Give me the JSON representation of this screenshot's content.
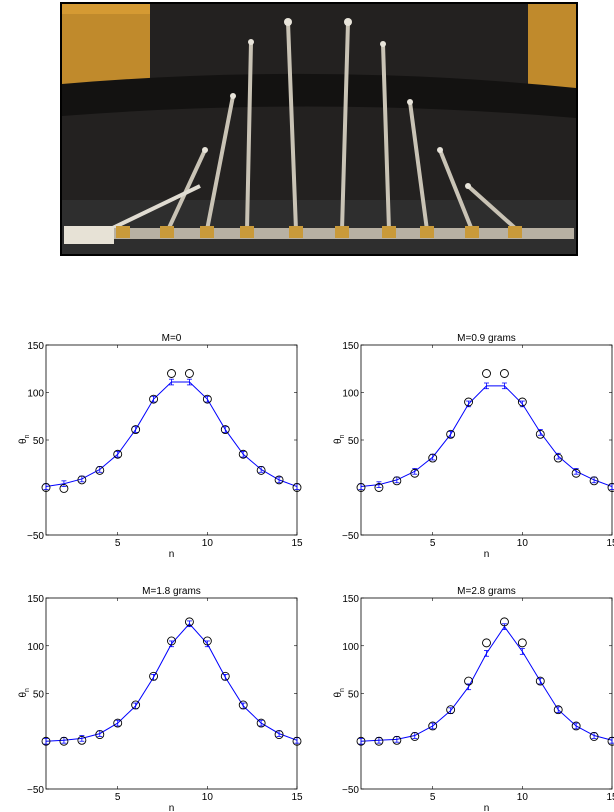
{
  "photo": {
    "icon": "pendulum-array-photo",
    "colors": {
      "backdrop": "#1e1e1e",
      "upper_band": "#2a2824",
      "floor": "#3a3a3a",
      "wood": "#c08a2c",
      "rod": "#c9c3b5",
      "base": "#b8b1a3"
    }
  },
  "colors": {
    "model_line": "#0000ff",
    "marker": "#000000",
    "axes": "#000000"
  },
  "chart_data": [
    {
      "type": "line",
      "title": "M=0",
      "xlabel": "n",
      "ylabel": "θ",
      "ylabel_subscript": "n",
      "xlim": [
        1,
        15
      ],
      "ylim": [
        -50,
        150
      ],
      "xticks": [
        5,
        10,
        15
      ],
      "yticks": [
        -50,
        50,
        100,
        150
      ],
      "series": [
        {
          "kind": "markers",
          "x": [
            1,
            2,
            3,
            4,
            5,
            6,
            7,
            8,
            9,
            10,
            11,
            12,
            13,
            14,
            15
          ],
          "y": [
            0,
            -1,
            8,
            18,
            35,
            61,
            93,
            120,
            120,
            93,
            61,
            35,
            18,
            8,
            0
          ]
        },
        {
          "kind": "line-errorbars",
          "x": [
            1,
            2,
            3,
            4,
            5,
            6,
            7,
            8,
            9,
            10,
            11,
            12,
            13,
            14,
            15
          ],
          "y": [
            1,
            4,
            9,
            19,
            35,
            61,
            93,
            111,
            111,
            93,
            61,
            35,
            19,
            8,
            1
          ],
          "err": 3
        }
      ]
    },
    {
      "type": "line",
      "title": "M=0.9 grams",
      "xlabel": "n",
      "ylabel": "θ",
      "ylabel_subscript": "n",
      "xlim": [
        1,
        15
      ],
      "ylim": [
        -50,
        150
      ],
      "xticks": [
        5,
        10,
        15
      ],
      "yticks": [
        -50,
        50,
        100,
        150
      ],
      "series": [
        {
          "kind": "markers",
          "x": [
            1,
            2,
            3,
            4,
            5,
            6,
            7,
            8,
            9,
            10,
            11,
            12,
            13,
            14,
            15
          ],
          "y": [
            0,
            0,
            7,
            15,
            31,
            56,
            90,
            120,
            120,
            90,
            56,
            31,
            15,
            7,
            0
          ]
        },
        {
          "kind": "line-errorbars",
          "x": [
            1,
            2,
            3,
            4,
            5,
            6,
            7,
            8,
            9,
            10,
            11,
            12,
            13,
            14,
            15
          ],
          "y": [
            1,
            3,
            8,
            17,
            32,
            56,
            88,
            107,
            107,
            88,
            58,
            33,
            17,
            8,
            1
          ],
          "err": 3
        }
      ]
    },
    {
      "type": "line",
      "title": "M=1.8 grams",
      "xlabel": "n",
      "ylabel": "θ",
      "ylabel_subscript": "n",
      "xlim": [
        1,
        15
      ],
      "ylim": [
        -50,
        150
      ],
      "xticks": [
        5,
        10,
        15
      ],
      "yticks": [
        -50,
        50,
        100,
        150
      ],
      "series": [
        {
          "kind": "markers",
          "x": [
            1,
            2,
            3,
            4,
            5,
            6,
            7,
            8,
            9,
            10,
            11,
            12,
            13,
            14,
            15
          ],
          "y": [
            0,
            0,
            1,
            7,
            19,
            38,
            68,
            105,
            125,
            105,
            68,
            38,
            19,
            7,
            0
          ]
        },
        {
          "kind": "line-errorbars",
          "x": [
            1,
            2,
            3,
            4,
            5,
            6,
            7,
            8,
            9,
            10,
            11,
            12,
            13,
            14,
            15
          ],
          "y": [
            0,
            1,
            3,
            8,
            19,
            37,
            67,
            102,
            123,
            102,
            67,
            37,
            19,
            8,
            1
          ],
          "err": 3
        }
      ]
    },
    {
      "type": "line",
      "title": "M=2.8 grams",
      "xlabel": "n",
      "ylabel": "θ",
      "ylabel_subscript": "n",
      "xlim": [
        1,
        15
      ],
      "ylim": [
        -50,
        150
      ],
      "xticks": [
        5,
        10,
        15
      ],
      "yticks": [
        -50,
        50,
        100,
        150
      ],
      "series": [
        {
          "kind": "markers",
          "x": [
            1,
            2,
            3,
            4,
            5,
            6,
            7,
            8,
            9,
            10,
            11,
            12,
            13,
            14,
            15
          ],
          "y": [
            0,
            0,
            1,
            5,
            16,
            33,
            63,
            103,
            125,
            103,
            63,
            33,
            16,
            5,
            0
          ]
        },
        {
          "kind": "line-errorbars",
          "x": [
            1,
            2,
            3,
            4,
            5,
            6,
            7,
            8,
            9,
            10,
            11,
            12,
            13,
            14,
            15
          ],
          "y": [
            0,
            1,
            2,
            6,
            16,
            32,
            57,
            92,
            120,
            94,
            63,
            33,
            16,
            6,
            1
          ],
          "err": 3
        }
      ]
    }
  ]
}
